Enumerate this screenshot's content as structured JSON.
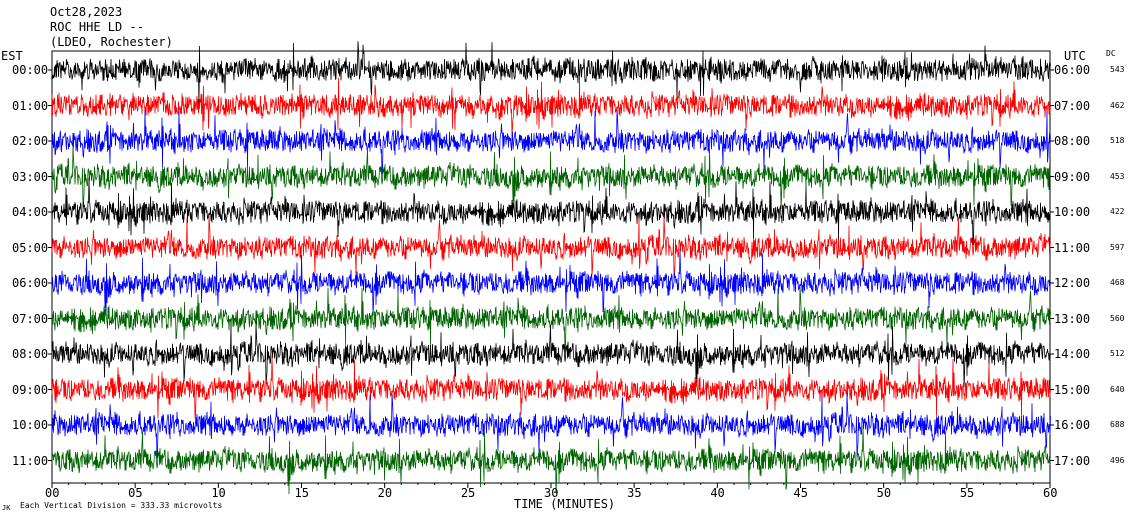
{
  "header": {
    "date": "Oct28,2023",
    "station": "ROC HHE LD --",
    "network": "(LDEO, Rochester)"
  },
  "left_axis_label": "EST",
  "right_axis_label": "UTC",
  "dc_label": "DC",
  "footer": {
    "scale_note": "Each Vertical Division =  333.33 microvolts",
    "logo_mark": "JK"
  },
  "chart_data": {
    "type": "line",
    "title": "",
    "xlabel": "TIME (MINUTES)",
    "ylabel": "",
    "xlim": [
      0,
      60
    ],
    "x_ticks": [
      "00",
      "05",
      "10",
      "15",
      "20",
      "25",
      "30",
      "35",
      "40",
      "45",
      "50",
      "55",
      "60"
    ],
    "x_tick_values": [
      0,
      5,
      10,
      15,
      20,
      25,
      30,
      35,
      40,
      45,
      50,
      55,
      60
    ],
    "colors": [
      "#000000",
      "#ff0000",
      "#0000ff",
      "#006400"
    ],
    "rows": [
      {
        "est": "00:00",
        "utc": "06:00",
        "dc": "543"
      },
      {
        "est": "01:00",
        "utc": "07:00",
        "dc": "462"
      },
      {
        "est": "02:00",
        "utc": "08:00",
        "dc": "518"
      },
      {
        "est": "03:00",
        "utc": "09:00",
        "dc": "453"
      },
      {
        "est": "04:00",
        "utc": "10:00",
        "dc": "422"
      },
      {
        "est": "05:00",
        "utc": "11:00",
        "dc": "597"
      },
      {
        "est": "06:00",
        "utc": "12:00",
        "dc": "468"
      },
      {
        "est": "07:00",
        "utc": "13:00",
        "dc": "560"
      },
      {
        "est": "08:00",
        "utc": "14:00",
        "dc": "512"
      },
      {
        "est": "09:00",
        "utc": "15:00",
        "dc": "640"
      },
      {
        "est": "10:00",
        "utc": "16:00",
        "dc": "688"
      },
      {
        "est": "11:00",
        "utc": "17:00",
        "dc": "496"
      }
    ]
  }
}
